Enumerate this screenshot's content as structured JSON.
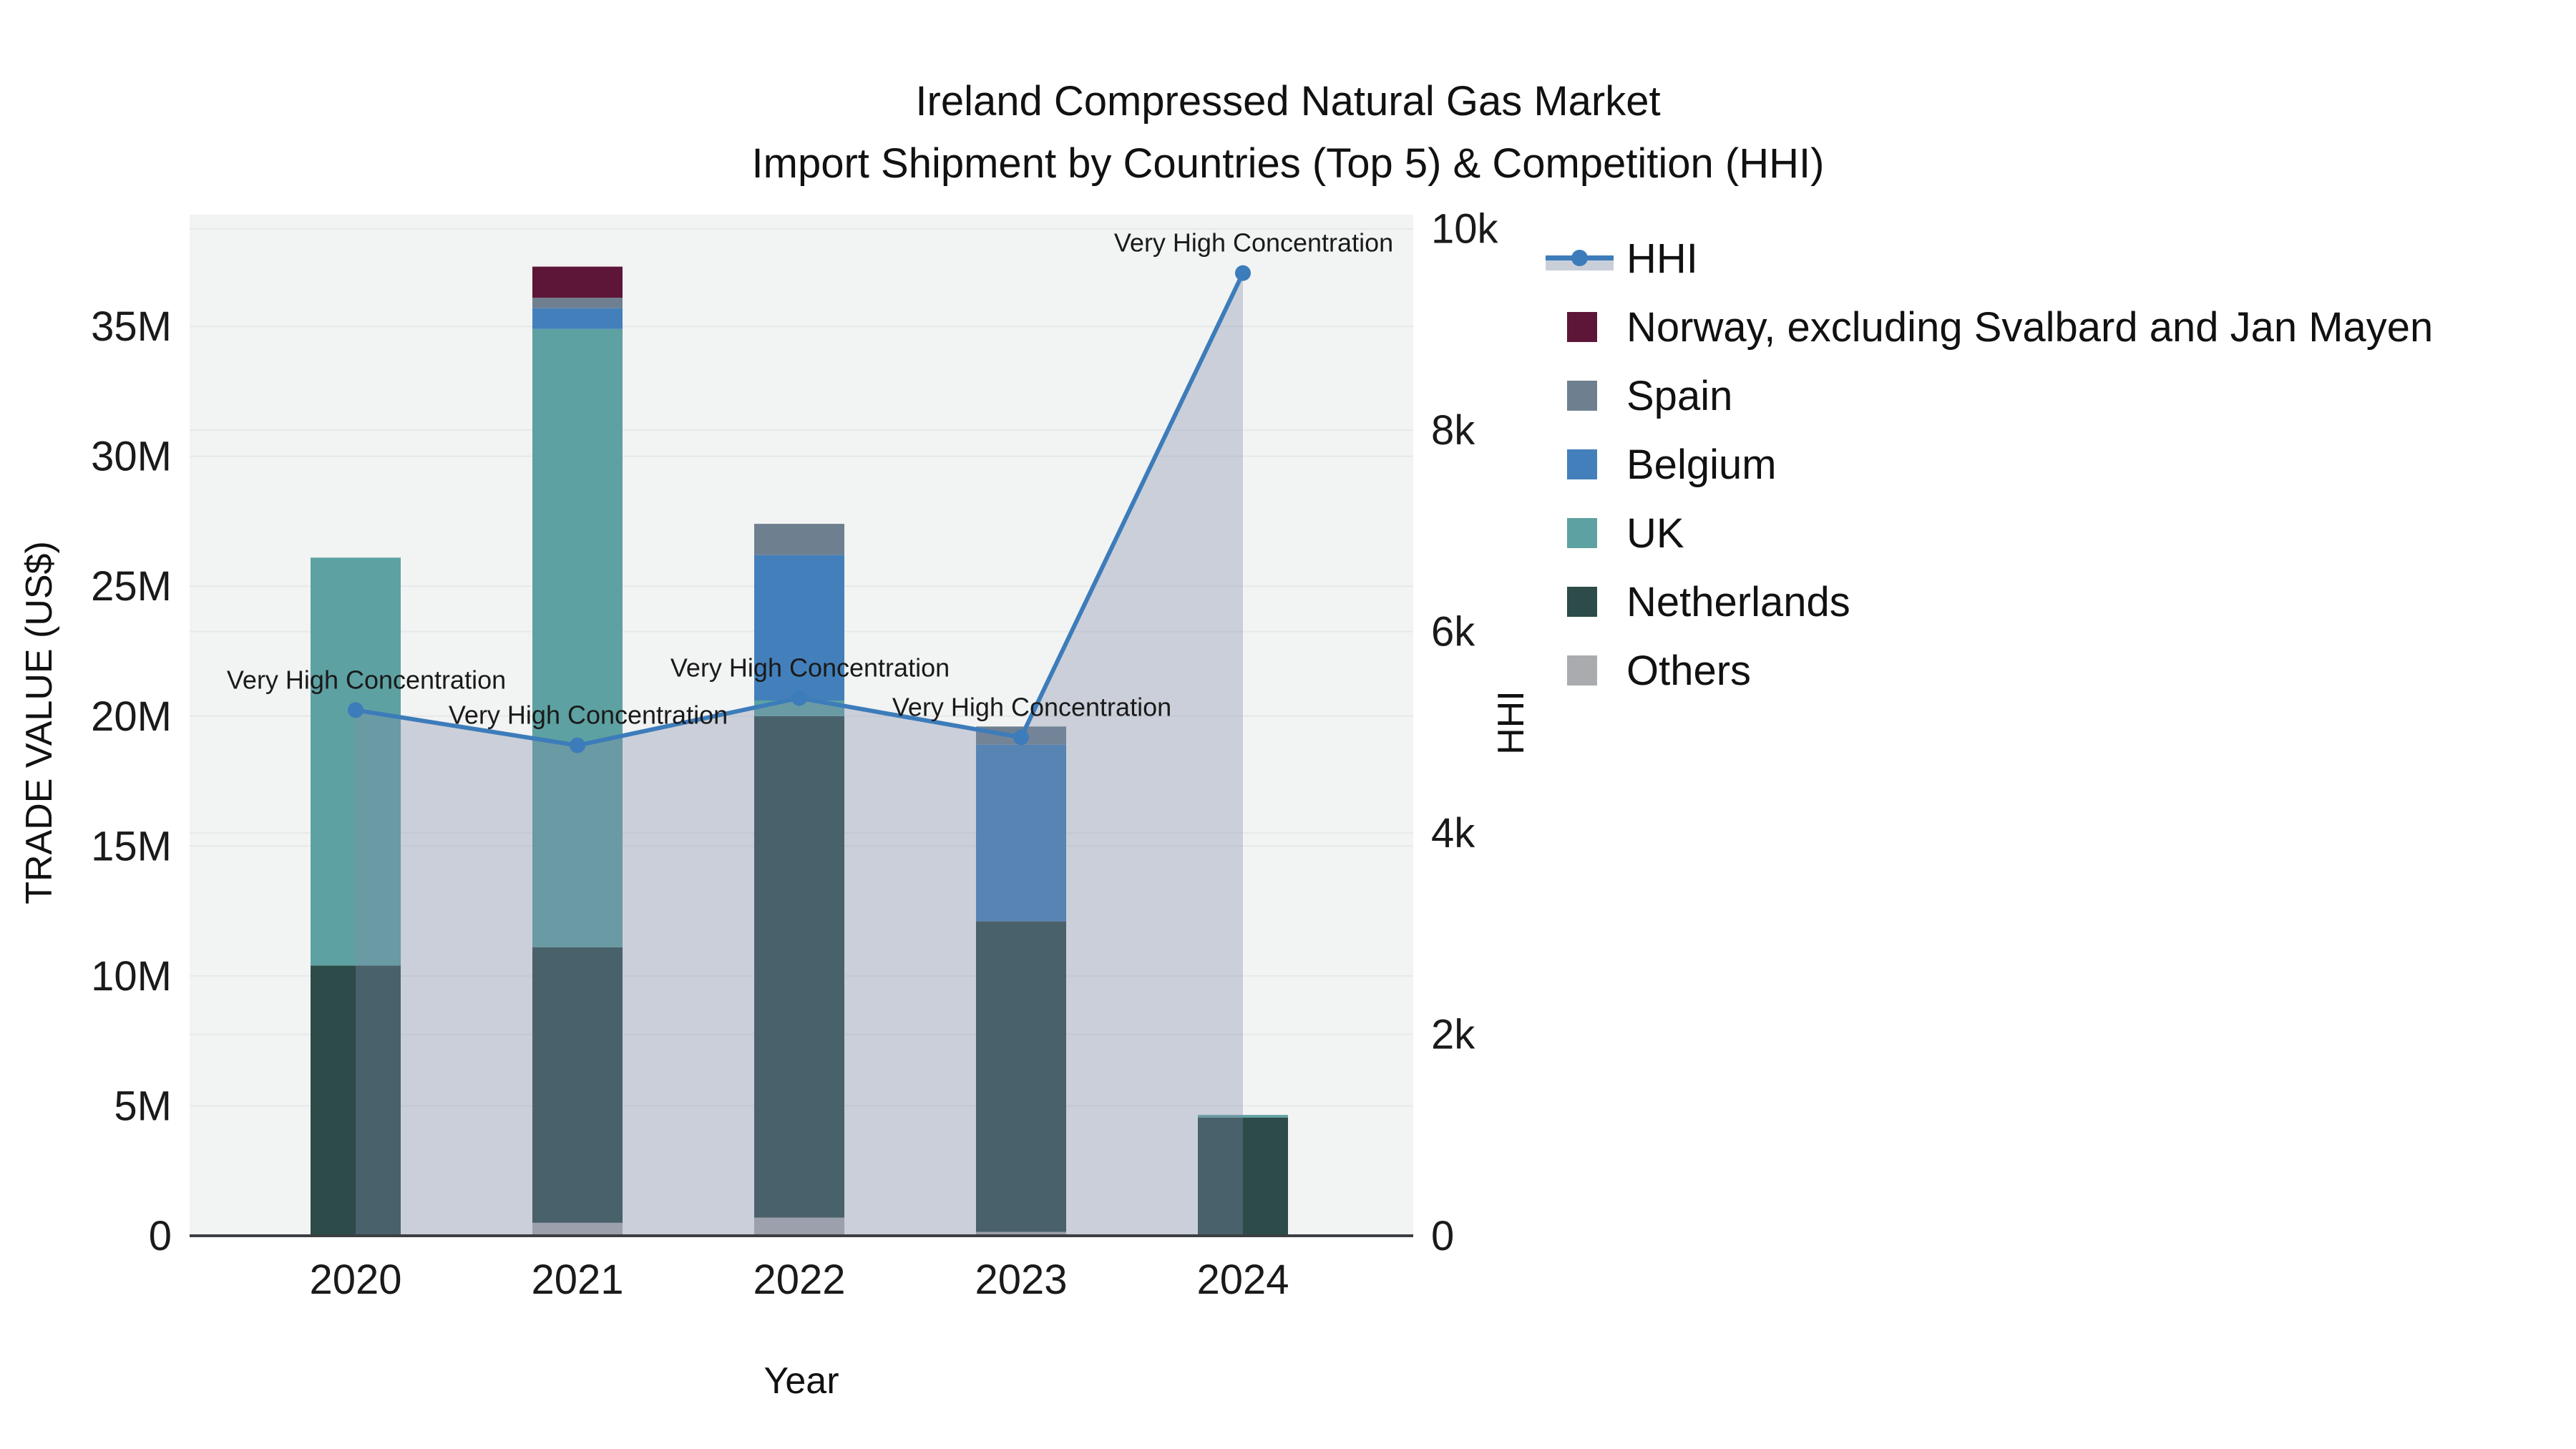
{
  "title": {
    "line1": "Ireland Compressed Natural Gas Market",
    "line2": "Import Shipment by Countries (Top 5) & Competition (HHI)"
  },
  "axes": {
    "x": {
      "title": "Year",
      "tick_labels": [
        "2020",
        "2021",
        "2022",
        "2023",
        "2024"
      ]
    },
    "y_left": {
      "title": "TRADE VALUE (US$)",
      "tick_labels": [
        "0",
        "5M",
        "10M",
        "15M",
        "20M",
        "25M",
        "30M",
        "35M"
      ],
      "tick_values": [
        0,
        5,
        10,
        15,
        20,
        25,
        30,
        35
      ],
      "range": [
        0,
        39.3
      ]
    },
    "y_right": {
      "title": "HHI",
      "tick_labels": [
        "0",
        "2k",
        "4k",
        "6k",
        "8k",
        "10k"
      ],
      "tick_values": [
        0,
        2000,
        4000,
        6000,
        8000,
        10000
      ],
      "range": [
        0,
        10140
      ]
    }
  },
  "chart_data": {
    "type": "bar+line",
    "categories": [
      "2020",
      "2021",
      "2022",
      "2023",
      "2024"
    ],
    "bar_value_unit": "millions US$",
    "stack_order": "bottom to top",
    "series": [
      {
        "name": "Others",
        "color": "#a9abae",
        "values": [
          0,
          0.5,
          0.7,
          0.15,
          0
        ]
      },
      {
        "name": "Netherlands",
        "color": "#2c4b49",
        "values": [
          10.4,
          10.6,
          19.3,
          11.95,
          4.55
        ]
      },
      {
        "name": "UK",
        "color": "#5ea1a2",
        "values": [
          15.7,
          23.8,
          0.6,
          0,
          0.1
        ]
      },
      {
        "name": "Belgium",
        "color": "#4380bb",
        "values": [
          0,
          0.8,
          5.6,
          6.8,
          0
        ]
      },
      {
        "name": "Spain",
        "color": "#6e8090",
        "values": [
          0,
          0.4,
          1.2,
          0.7,
          0
        ]
      },
      {
        "name": "Norway, excluding Svalbard and Jan Mayen",
        "color": "#5e1638",
        "values": [
          0,
          1.2,
          0,
          0,
          0
        ]
      }
    ],
    "bar_totals": [
      26.1,
      37.3,
      27.4,
      19.6,
      4.65
    ],
    "hhi_line": {
      "name": "HHI",
      "color": "#3d7cba",
      "values": [
        5220,
        4870,
        5340,
        4950,
        9560
      ],
      "annotations": [
        "Very High Concentration",
        "Very High Concentration",
        "Very High Concentration",
        "Very High Concentration",
        "Very High Concentration"
      ]
    },
    "layout": {
      "legend_position": "right",
      "grid": true,
      "plot_bg": "#f2f3f3",
      "grid_color": "#e7e8ea",
      "axis_line_color": "#3b3f42",
      "area_fill": "rgba(130,140,170,0.35)"
    }
  },
  "legend": {
    "items": [
      {
        "label": "HHI",
        "type": "line",
        "color": "#3d7cba"
      },
      {
        "label": "Norway, excluding Svalbard and Jan Mayen",
        "type": "bar",
        "color": "#5e1638"
      },
      {
        "label": "Spain",
        "type": "bar",
        "color": "#6e8090"
      },
      {
        "label": "Belgium",
        "type": "bar",
        "color": "#4380bb"
      },
      {
        "label": "UK",
        "type": "bar",
        "color": "#5ea1a2"
      },
      {
        "label": "Netherlands",
        "type": "bar",
        "color": "#2c4b49"
      },
      {
        "label": "Others",
        "type": "bar",
        "color": "#a9abae"
      }
    ]
  }
}
